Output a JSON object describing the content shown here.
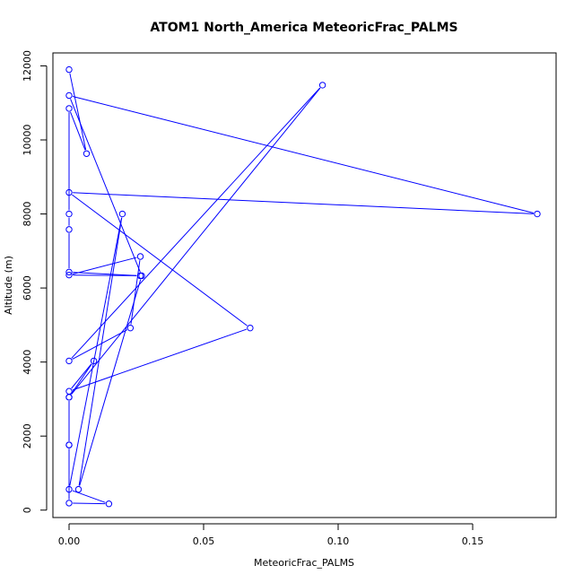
{
  "chart_data": {
    "type": "line",
    "title": "ATOM1 North_America MeteoricFrac_PALMS",
    "xlabel": "MeteoricFrac_PALMS",
    "ylabel": "Altitude (m)",
    "xlim": [
      -0.006,
      0.181
    ],
    "ylim": [
      -200,
      12350
    ],
    "x_ticks": [
      0,
      0.05,
      0.1,
      0.15
    ],
    "x_tick_labels": [
      "0.00",
      "0.05",
      "0.10",
      "0.15"
    ],
    "y_ticks": [
      0,
      2000,
      4000,
      6000,
      8000,
      10000,
      12000
    ],
    "y_tick_labels": [
      "0",
      "2000",
      "4000",
      "6000",
      "8000",
      "10000",
      "12000"
    ],
    "grid": false,
    "colors": {
      "series": "#0000ff",
      "axis": "#000000"
    },
    "series": [
      {
        "x": [
          0.0,
          0.0065,
          0.0,
          0.0,
          0.0,
          0.0,
          0.0265,
          0.0,
          0.0265,
          0.0228,
          0.0,
          0.0942,
          0.0,
          0.0,
          0.0,
          0.0148,
          0.0,
          0.0198,
          0.0035,
          0.027,
          0.0,
          0.174,
          0.0,
          0.0673,
          0.0,
          0.0092,
          0.0,
          0.0
        ],
        "y": [
          11900,
          9630,
          10850,
          8000,
          7580,
          6430,
          6330,
          6350,
          6850,
          4920,
          4030,
          11480,
          3050,
          1760,
          190,
          170,
          560,
          8000,
          560,
          6330,
          11200,
          8000,
          8580,
          4920,
          3210,
          4030,
          3050,
          1760
        ]
      }
    ]
  }
}
